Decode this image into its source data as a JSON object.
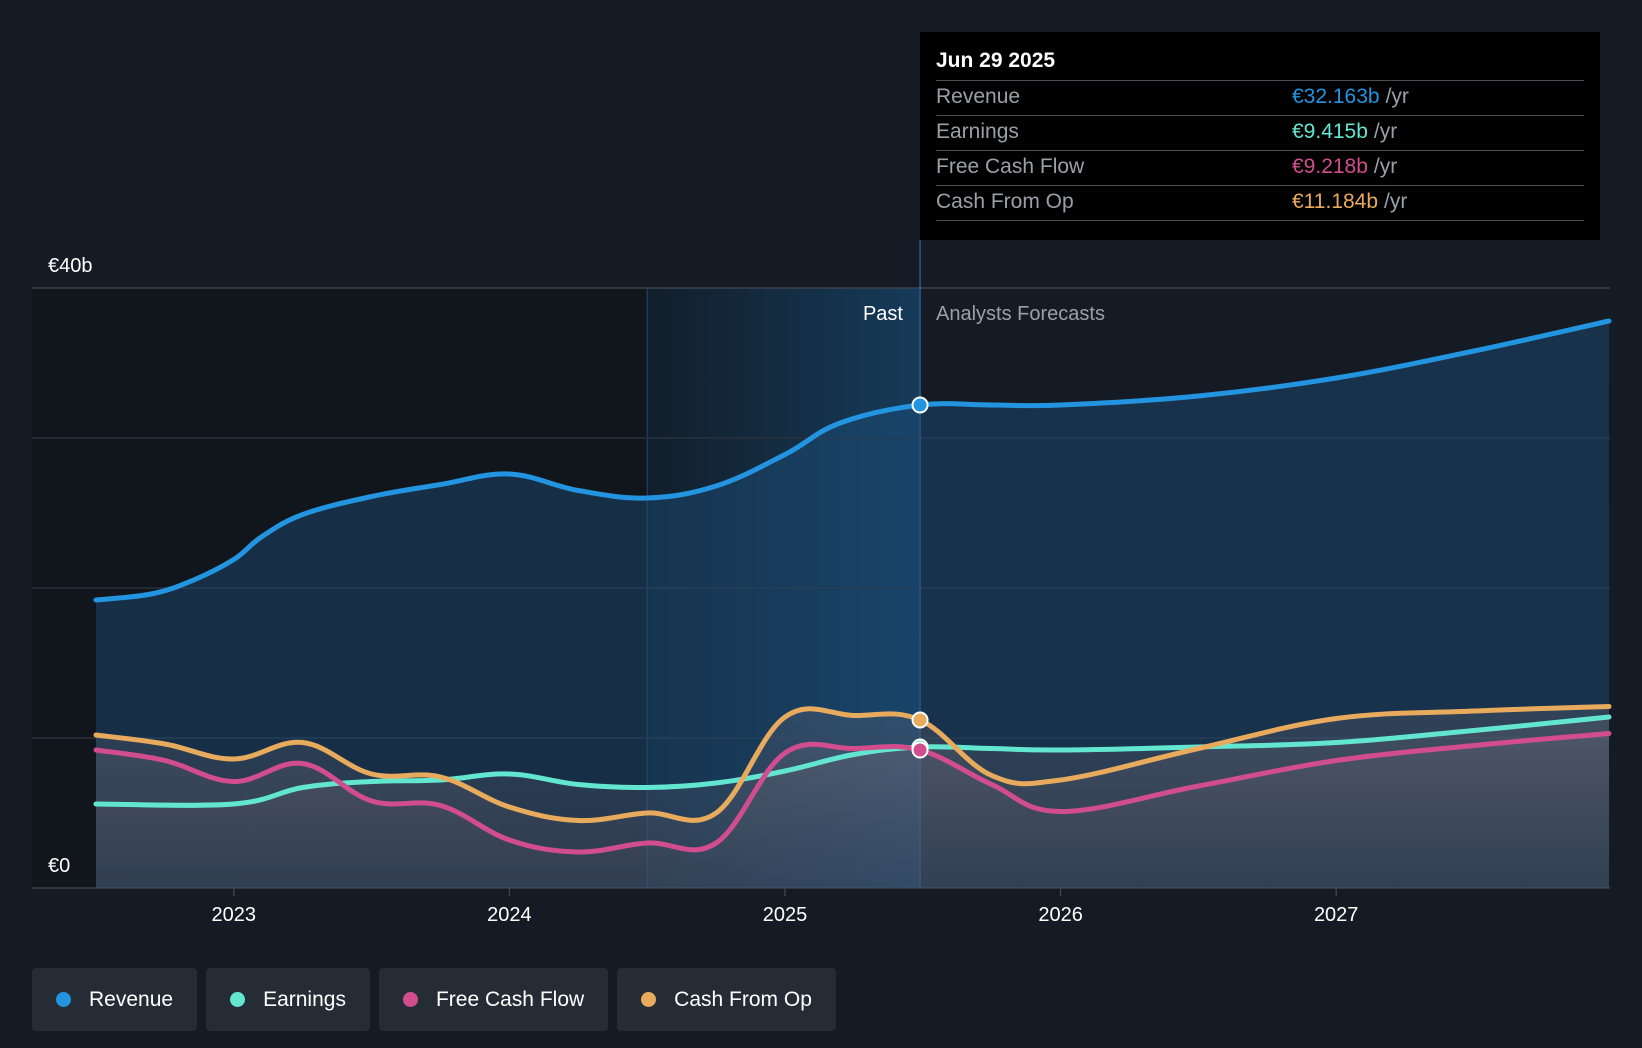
{
  "chart_data": {
    "type": "line",
    "y_axis": {
      "min": 0,
      "max": 40,
      "top_label": "€40b",
      "bottom_label": "€0"
    },
    "x_axis": {
      "ticks": [
        "2023",
        "2024",
        "2025",
        "2026",
        "2027"
      ],
      "range": [
        2022.5,
        2027.99
      ]
    },
    "divider_x": 2025.49,
    "highlight_start_x": 2024.5,
    "past_label": "Past",
    "forecast_label": "Analysts Forecasts",
    "series": [
      {
        "name": "Revenue",
        "color": "#2394df",
        "points": [
          [
            2022.5,
            19.2
          ],
          [
            2022.7,
            19.6
          ],
          [
            2022.85,
            20.5
          ],
          [
            2023.0,
            21.9
          ],
          [
            2023.1,
            23.4
          ],
          [
            2023.25,
            24.9
          ],
          [
            2023.5,
            26.1
          ],
          [
            2023.75,
            26.9
          ],
          [
            2024.0,
            27.6
          ],
          [
            2024.25,
            26.5
          ],
          [
            2024.5,
            26.0
          ],
          [
            2024.75,
            26.8
          ],
          [
            2025.0,
            28.9
          ],
          [
            2025.2,
            31.0
          ],
          [
            2025.49,
            32.2
          ],
          [
            2025.75,
            32.2
          ],
          [
            2026.0,
            32.2
          ],
          [
            2026.5,
            32.8
          ],
          [
            2027.0,
            34.0
          ],
          [
            2027.5,
            35.8
          ],
          [
            2027.99,
            37.8
          ]
        ]
      },
      {
        "name": "Earnings",
        "color": "#63e6d0",
        "points": [
          [
            2022.5,
            5.6
          ],
          [
            2023.0,
            5.6
          ],
          [
            2023.25,
            6.7
          ],
          [
            2023.5,
            7.1
          ],
          [
            2023.75,
            7.2
          ],
          [
            2024.0,
            7.6
          ],
          [
            2024.25,
            6.9
          ],
          [
            2024.5,
            6.7
          ],
          [
            2024.75,
            7.0
          ],
          [
            2025.0,
            7.8
          ],
          [
            2025.25,
            8.9
          ],
          [
            2025.49,
            9.4
          ],
          [
            2025.75,
            9.3
          ],
          [
            2026.0,
            9.2
          ],
          [
            2026.5,
            9.4
          ],
          [
            2027.0,
            9.7
          ],
          [
            2027.5,
            10.5
          ],
          [
            2027.99,
            11.4
          ]
        ]
      },
      {
        "name": "Free Cash Flow",
        "color": "#d24d8d",
        "points": [
          [
            2022.5,
            9.2
          ],
          [
            2022.75,
            8.5
          ],
          [
            2023.0,
            7.1
          ],
          [
            2023.25,
            8.3
          ],
          [
            2023.5,
            5.8
          ],
          [
            2023.75,
            5.5
          ],
          [
            2024.0,
            3.2
          ],
          [
            2024.25,
            2.4
          ],
          [
            2024.5,
            3.0
          ],
          [
            2024.75,
            3.0
          ],
          [
            2025.0,
            9.0
          ],
          [
            2025.25,
            9.3
          ],
          [
            2025.49,
            9.2
          ],
          [
            2025.75,
            6.9
          ],
          [
            2026.0,
            5.1
          ],
          [
            2026.5,
            6.8
          ],
          [
            2027.0,
            8.5
          ],
          [
            2027.5,
            9.5
          ],
          [
            2027.99,
            10.3
          ]
        ]
      },
      {
        "name": "Cash From Op",
        "color": "#e8aa5c",
        "points": [
          [
            2022.5,
            10.2
          ],
          [
            2022.75,
            9.6
          ],
          [
            2023.0,
            8.6
          ],
          [
            2023.25,
            9.7
          ],
          [
            2023.5,
            7.6
          ],
          [
            2023.75,
            7.4
          ],
          [
            2024.0,
            5.4
          ],
          [
            2024.25,
            4.5
          ],
          [
            2024.5,
            5.0
          ],
          [
            2024.75,
            5.0
          ],
          [
            2025.0,
            11.4
          ],
          [
            2025.25,
            11.5
          ],
          [
            2025.49,
            11.2
          ],
          [
            2025.75,
            7.5
          ],
          [
            2026.0,
            7.2
          ],
          [
            2026.5,
            9.3
          ],
          [
            2027.0,
            11.3
          ],
          [
            2027.5,
            11.8
          ],
          [
            2027.99,
            12.1
          ]
        ]
      }
    ],
    "tooltip": {
      "date": "Jun 29 2025",
      "rows": [
        {
          "name": "Revenue",
          "value": "€32.163b",
          "unit": "/yr",
          "color": "#2394df"
        },
        {
          "name": "Earnings",
          "value": "€9.415b",
          "unit": "/yr",
          "color": "#63e6d0"
        },
        {
          "name": "Free Cash Flow",
          "value": "€9.218b",
          "unit": "/yr",
          "color": "#d24d8d"
        },
        {
          "name": "Cash From Op",
          "value": "€11.184b",
          "unit": "/yr",
          "color": "#e8aa5c"
        }
      ]
    }
  },
  "legend": [
    {
      "label": "Revenue",
      "color": "#2394df"
    },
    {
      "label": "Earnings",
      "color": "#63e6d0"
    },
    {
      "label": "Free Cash Flow",
      "color": "#d24d8d"
    },
    {
      "label": "Cash From Op",
      "color": "#e8aa5c"
    }
  ]
}
